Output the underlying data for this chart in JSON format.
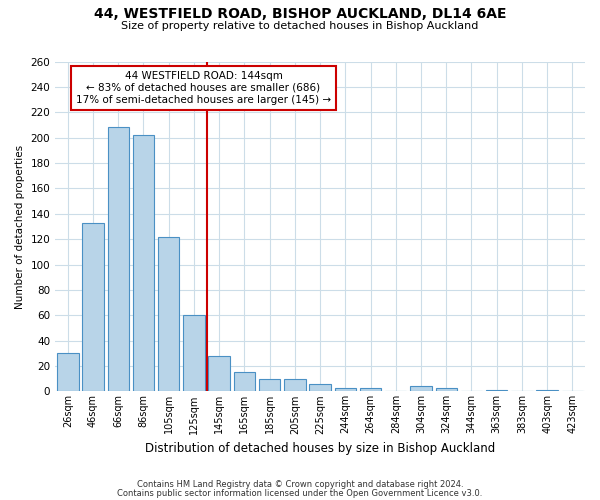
{
  "title": "44, WESTFIELD ROAD, BISHOP AUCKLAND, DL14 6AE",
  "subtitle": "Size of property relative to detached houses in Bishop Auckland",
  "xlabel": "Distribution of detached houses by size in Bishop Auckland",
  "ylabel": "Number of detached properties",
  "bar_labels": [
    "26sqm",
    "46sqm",
    "66sqm",
    "86sqm",
    "105sqm",
    "125sqm",
    "145sqm",
    "165sqm",
    "185sqm",
    "205sqm",
    "225sqm",
    "244sqm",
    "264sqm",
    "284sqm",
    "304sqm",
    "324sqm",
    "344sqm",
    "363sqm",
    "383sqm",
    "403sqm",
    "423sqm"
  ],
  "bar_values": [
    30,
    133,
    208,
    202,
    122,
    60,
    28,
    15,
    10,
    10,
    6,
    3,
    3,
    0,
    4,
    3,
    0,
    1,
    0,
    1,
    0
  ],
  "bar_color": "#b8d4e8",
  "bar_edge_color": "#4a90c4",
  "annotation_title": "44 WESTFIELD ROAD: 144sqm",
  "annotation_line1": "← 83% of detached houses are smaller (686)",
  "annotation_line2": "17% of semi-detached houses are larger (145) →",
  "annotation_box_color": "#ffffff",
  "annotation_box_edge": "#cc0000",
  "highlight_line_color": "#cc0000",
  "footer1": "Contains HM Land Registry data © Crown copyright and database right 2024.",
  "footer2": "Contains public sector information licensed under the Open Government Licence v3.0.",
  "ylim": [
    0,
    260
  ],
  "yticks": [
    0,
    20,
    40,
    60,
    80,
    100,
    120,
    140,
    160,
    180,
    200,
    220,
    240,
    260
  ],
  "background_color": "#ffffff",
  "grid_color": "#ccdde8"
}
